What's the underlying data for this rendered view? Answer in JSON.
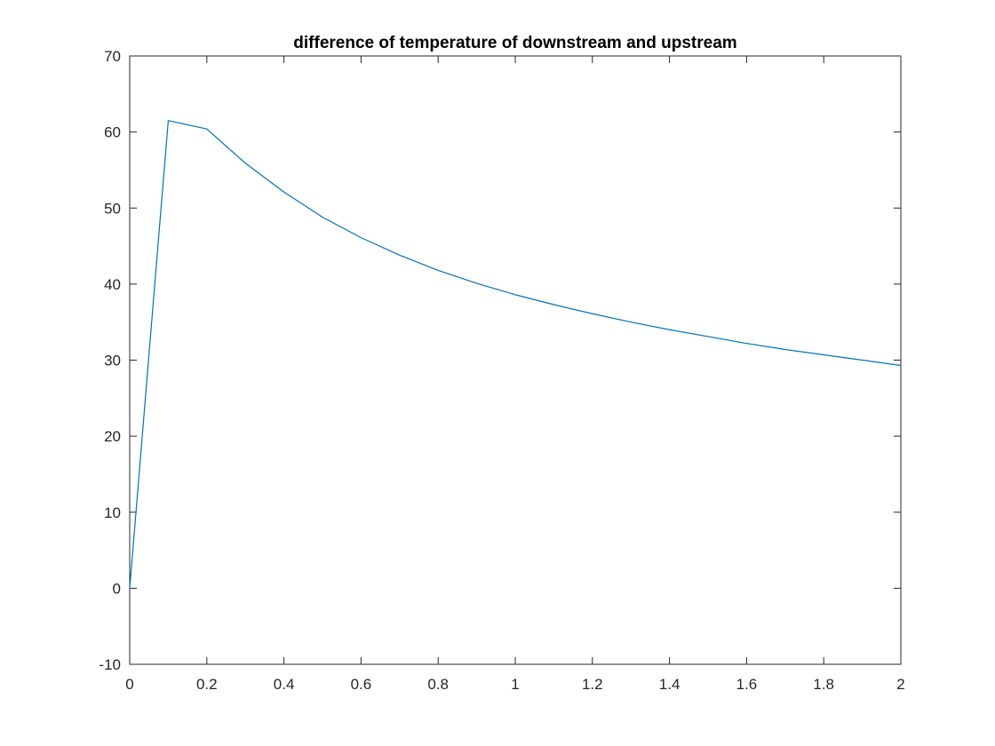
{
  "chart_data": {
    "type": "line",
    "title": "difference of temperature of downstream and upstream",
    "xlabel": "",
    "ylabel": "",
    "xlim": [
      0,
      2
    ],
    "ylim": [
      -10,
      70
    ],
    "xticks": [
      0,
      0.2,
      0.4,
      0.6,
      0.8,
      1,
      1.2,
      1.4,
      1.6,
      1.8,
      2
    ],
    "xtick_labels": [
      "0",
      "0.2",
      "0.4",
      "0.6",
      "0.8",
      "1",
      "1.2",
      "1.4",
      "1.6",
      "1.8",
      "2"
    ],
    "yticks": [
      -10,
      0,
      10,
      20,
      30,
      40,
      50,
      60,
      70
    ],
    "ytick_labels": [
      "-10",
      "0",
      "10",
      "20",
      "30",
      "40",
      "50",
      "60",
      "70"
    ],
    "grid": false,
    "box": true,
    "series": [
      {
        "color": "#0072bd",
        "x": [
          0,
          0.1,
          0.2,
          0.3,
          0.4,
          0.5,
          0.6,
          0.7,
          0.8,
          0.9,
          1.0,
          1.1,
          1.2,
          1.3,
          1.4,
          1.5,
          1.6,
          1.7,
          1.8,
          1.9,
          2.0
        ],
        "y": [
          0,
          61.5,
          60.4,
          55.9,
          52.1,
          48.8,
          46.1,
          43.8,
          41.8,
          40.1,
          38.6,
          37.3,
          36.1,
          35.0,
          34.0,
          33.1,
          32.2,
          31.4,
          30.7,
          30.0,
          29.3
        ]
      }
    ]
  }
}
